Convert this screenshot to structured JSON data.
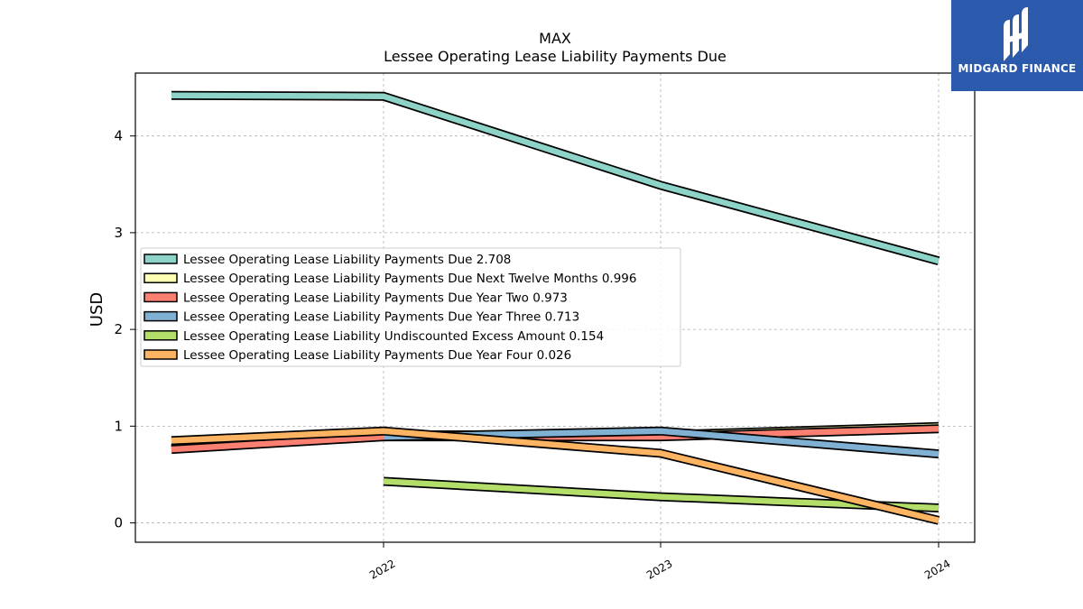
{
  "logo": {
    "text": "MIDGARD FINANCE",
    "icon": "midgard-logo-icon",
    "background": "#2b5aad"
  },
  "chart_data": {
    "type": "line",
    "title": "MAX",
    "subtitle": "Lessee Operating Lease Liability Payments Due",
    "xlabel": "",
    "ylabel": "USD",
    "x": [
      "2021",
      "2022",
      "2023",
      "2024"
    ],
    "x_tick_labels": [
      "2022",
      "2023",
      "2024"
    ],
    "ylim": [
      -0.2,
      4.65
    ],
    "y_ticks": [
      0,
      1,
      2,
      3,
      4
    ],
    "grid": true,
    "legend_position": "center-left",
    "series": [
      {
        "name": "Lessee Operating Lease Liability Payments Due  2.708",
        "color": "#8dd3c7",
        "values": [
          4.42,
          4.41,
          3.49,
          2.708
        ]
      },
      {
        "name": "Lessee Operating Lease Liability Payments Due Next Twelve Months  0.996",
        "color": "#ffffb3",
        "values": [
          0.77,
          0.91,
          0.91,
          0.996
        ]
      },
      {
        "name": "Lessee Operating Lease Liability Payments Due Year Two  0.973",
        "color": "#fb8072",
        "values": [
          0.76,
          0.89,
          0.89,
          0.973
        ]
      },
      {
        "name": "Lessee Operating Lease Liability Payments Due Year Three  0.713",
        "color": "#80b1d3",
        "values": [
          null,
          0.89,
          0.95,
          0.713
        ]
      },
      {
        "name": "Lessee Operating Lease Liability Undiscounted Excess Amount  0.154",
        "color": "#b3de69",
        "values": [
          null,
          0.43,
          0.27,
          0.154
        ]
      },
      {
        "name": "Lessee Operating Lease Liability Payments Due Year Four  0.026",
        "color": "#fdb462",
        "values": [
          0.85,
          0.95,
          0.72,
          0.026
        ]
      }
    ]
  }
}
